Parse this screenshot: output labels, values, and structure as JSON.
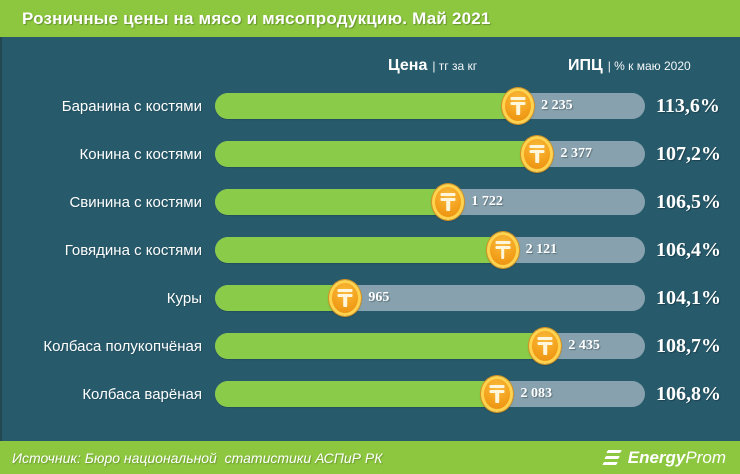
{
  "title": "Розничные цены на мясо и мясопродукцию. Май 2021",
  "header": {
    "price_label": "Цена",
    "price_unit": "| тг за кг",
    "ipc_label": "ИПЦ",
    "ipc_unit": "| % к маю 2020"
  },
  "chart_data": {
    "type": "bar",
    "orientation": "horizontal",
    "title": "Розничные цены на мясо и мясопродукцию. Май 2021",
    "categories": [
      "Баранина с костями",
      "Конина с костями",
      "Свинина с костями",
      "Говядина с костями",
      "Куры",
      "Колбаса полукопчёная",
      "Колбаса варёная"
    ],
    "series": [
      {
        "name": "Цена, тг за кг",
        "values": [
          2235,
          2377,
          1722,
          2121,
          965,
          2435,
          2083
        ],
        "display": [
          "2 235",
          "2 377",
          "1 722",
          "2 121",
          "965",
          "2 435",
          "2 083"
        ]
      },
      {
        "name": "ИПЦ, % к маю 2020",
        "values": [
          113.6,
          107.2,
          106.5,
          106.4,
          104.1,
          108.7,
          106.8
        ],
        "display": [
          "113,6%",
          "107,2%",
          "106,5%",
          "106,4%",
          "104,1%",
          "108,7%",
          "106,8%"
        ]
      }
    ],
    "xlim": [
      0,
      3160
    ],
    "grid": false,
    "legend": "none"
  },
  "footer": {
    "source": "Источник: Бюро национальной  статистики АСПиР РК",
    "brand_bold": "Energy",
    "brand_light": "Prom"
  },
  "colors": {
    "band_green": "#8DC63F",
    "bar_green": "#8BCB4A",
    "background_teal": "#275B6C",
    "track_gray": "#87A2AE",
    "coin_gold": "#FFD34F",
    "coin_orange": "#F3A11C",
    "text_white": "#FFFFFF"
  }
}
